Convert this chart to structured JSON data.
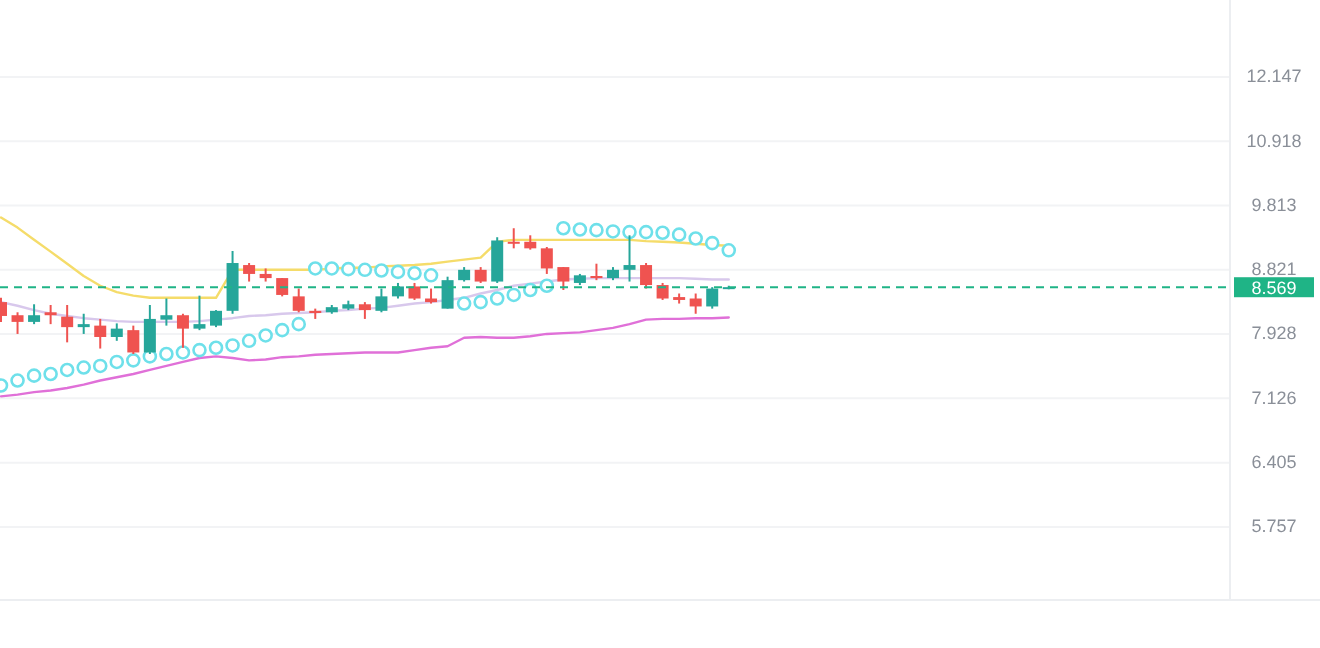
{
  "chart_data": {
    "type": "candlestick",
    "log": true,
    "grid": "y",
    "tick_labels": "y",
    "categories": [
      null,
      null,
      null,
      null,
      null,
      null,
      null,
      null,
      null,
      null,
      null,
      null,
      null,
      null,
      null,
      null,
      null,
      null,
      null,
      null,
      null,
      null,
      null,
      null,
      null,
      null,
      null,
      null,
      null,
      null,
      null,
      null,
      null,
      null,
      null,
      null,
      null,
      null,
      null,
      null,
      null,
      null,
      null,
      null,
      null
    ],
    "ohlc": [
      [
        8.36,
        8.42,
        8.09,
        8.17
      ],
      [
        8.18,
        8.22,
        7.93,
        8.09
      ],
      [
        8.09,
        8.33,
        8.06,
        8.18
      ],
      [
        8.22,
        8.32,
        8.06,
        8.18
      ],
      [
        8.16,
        8.32,
        7.82,
        8.02
      ],
      [
        8.02,
        8.2,
        7.93,
        8.06
      ],
      [
        8.04,
        8.13,
        7.74,
        7.89
      ],
      [
        7.89,
        8.07,
        7.84,
        8.0
      ],
      [
        7.98,
        8.04,
        7.67,
        7.69
      ],
      [
        7.69,
        8.32,
        7.67,
        8.13
      ],
      [
        8.12,
        8.41,
        8.04,
        8.18
      ],
      [
        8.18,
        8.2,
        7.75,
        8.0
      ],
      [
        8.0,
        8.45,
        7.98,
        8.06
      ],
      [
        8.04,
        8.25,
        8.02,
        8.24
      ],
      [
        8.24,
        9.1,
        8.2,
        8.92
      ],
      [
        8.89,
        8.92,
        8.65,
        8.76
      ],
      [
        8.76,
        8.84,
        8.65,
        8.7
      ],
      [
        8.7,
        8.7,
        8.44,
        8.46
      ],
      [
        8.44,
        8.55,
        8.22,
        8.24
      ],
      [
        8.24,
        8.27,
        8.13,
        8.21
      ],
      [
        8.22,
        8.32,
        8.2,
        8.29
      ],
      [
        8.27,
        8.38,
        8.25,
        8.33
      ],
      [
        8.33,
        8.36,
        8.13,
        8.25
      ],
      [
        8.24,
        8.55,
        8.22,
        8.44
      ],
      [
        8.44,
        8.63,
        8.41,
        8.58
      ],
      [
        8.58,
        8.63,
        8.39,
        8.41
      ],
      [
        8.41,
        8.55,
        8.34,
        8.36
      ],
      [
        8.27,
        8.72,
        8.27,
        8.67
      ],
      [
        8.67,
        8.86,
        8.65,
        8.82
      ],
      [
        8.82,
        8.86,
        8.63,
        8.65
      ],
      [
        8.65,
        9.31,
        8.63,
        9.26
      ],
      [
        9.24,
        9.45,
        9.14,
        9.21
      ],
      [
        9.24,
        9.34,
        9.12,
        9.14
      ],
      [
        9.14,
        9.16,
        8.76,
        8.84
      ],
      [
        8.86,
        8.86,
        8.53,
        8.65
      ],
      [
        8.63,
        8.76,
        8.6,
        8.74
      ],
      [
        8.73,
        8.91,
        8.67,
        8.7
      ],
      [
        8.7,
        8.86,
        8.67,
        8.82
      ],
      [
        8.82,
        9.34,
        8.65,
        8.89
      ],
      [
        8.89,
        8.92,
        8.55,
        8.6
      ],
      [
        8.6,
        8.63,
        8.39,
        8.41
      ],
      [
        8.43,
        8.48,
        8.34,
        8.39
      ],
      [
        8.41,
        8.48,
        8.2,
        8.3
      ],
      [
        8.3,
        8.57,
        8.27,
        8.55
      ],
      [
        8.55,
        8.59,
        8.54,
        8.57
      ]
    ],
    "colors": [
      "#ef5350",
      "#ef5350",
      "#26a69a",
      "#ef5350",
      "#ef5350",
      "#26a69a",
      "#ef5350",
      "#26a69a",
      "#ef5350",
      "#26a69a",
      "#26a69a",
      "#ef5350",
      "#26a69a",
      "#26a69a",
      "#26a69a",
      "#ef5350",
      "#ef5350",
      "#ef5350",
      "#ef5350",
      "#ef5350",
      "#26a69a",
      "#26a69a",
      "#ef5350",
      "#26a69a",
      "#26a69a",
      "#ef5350",
      "#ef5350",
      "#26a69a",
      "#26a69a",
      "#ef5350",
      "#26a69a",
      "#ef5350",
      "#ef5350",
      "#ef5350",
      "#ef5350",
      "#26a69a",
      "#ef5350",
      "#26a69a",
      "#26a69a",
      "#ef5350",
      "#ef5350",
      "#ef5350",
      "#ef5350",
      "#26a69a",
      "#26a69a"
    ],
    "series": [
      {
        "type": "line",
        "color": "#f5dc6a",
        "values": [
          9.62,
          9.46,
          9.27,
          9.09,
          8.91,
          8.73,
          8.59,
          8.5,
          8.45,
          8.42,
          8.42,
          8.42,
          8.42,
          8.42,
          8.82,
          8.82,
          8.82,
          8.82,
          8.82,
          8.82,
          8.84,
          8.85,
          8.85,
          8.87,
          8.88,
          8.89,
          8.91,
          8.94,
          8.97,
          9.0,
          9.24,
          9.27,
          9.27,
          9.27,
          9.27,
          9.27,
          9.27,
          9.27,
          9.27,
          9.25,
          9.24,
          9.23,
          9.21,
          9.19,
          9.18
        ]
      },
      {
        "type": "line",
        "color": "#d8c8ec",
        "values": [
          8.36,
          8.31,
          8.25,
          8.2,
          8.17,
          8.14,
          8.12,
          8.1,
          8.09,
          8.09,
          8.09,
          8.09,
          8.1,
          8.12,
          8.14,
          8.17,
          8.18,
          8.2,
          8.21,
          8.22,
          8.24,
          8.25,
          8.27,
          8.28,
          8.31,
          8.34,
          8.36,
          8.39,
          8.42,
          8.48,
          8.53,
          8.59,
          8.62,
          8.65,
          8.68,
          8.69,
          8.7,
          8.7,
          8.7,
          8.7,
          8.7,
          8.7,
          8.69,
          8.68,
          8.68
        ]
      },
      {
        "type": "line",
        "color": "#e070d8",
        "values": [
          7.15,
          7.17,
          7.2,
          7.22,
          7.25,
          7.29,
          7.34,
          7.38,
          7.42,
          7.47,
          7.52,
          7.57,
          7.62,
          7.64,
          7.62,
          7.59,
          7.6,
          7.63,
          7.64,
          7.66,
          7.67,
          7.68,
          7.69,
          7.69,
          7.69,
          7.72,
          7.75,
          7.77,
          7.88,
          7.89,
          7.88,
          7.88,
          7.9,
          7.93,
          7.94,
          7.95,
          7.98,
          8.01,
          8.06,
          8.12,
          8.13,
          8.13,
          8.14,
          8.14,
          8.15
        ]
      },
      {
        "type": "scatter",
        "marker": "circle",
        "color": "#6ee0ea",
        "values": [
          7.28,
          7.34,
          7.4,
          7.42,
          7.47,
          7.5,
          7.52,
          7.57,
          7.59,
          7.64,
          7.67,
          7.69,
          7.72,
          7.75,
          7.78,
          7.84,
          7.91,
          7.98,
          8.06,
          8.84,
          8.84,
          8.83,
          8.82,
          8.81,
          8.79,
          8.77,
          8.74,
          null,
          8.34,
          8.36,
          8.41,
          8.46,
          8.53,
          8.59,
          9.45,
          9.43,
          9.42,
          9.4,
          9.39,
          9.39,
          9.38,
          9.35,
          9.29,
          9.22,
          9.11
        ]
      }
    ],
    "ylim": [
      5.1,
      13.8
    ],
    "yticks": [
      5.757,
      6.405,
      7.126,
      7.928,
      8.821,
      9.813,
      10.918,
      12.147
    ],
    "ref_lines": [
      {
        "axis": "y",
        "value": 8.569,
        "label": "8.569",
        "color": "#1fb486",
        "line_style": "dashed"
      }
    ]
  }
}
